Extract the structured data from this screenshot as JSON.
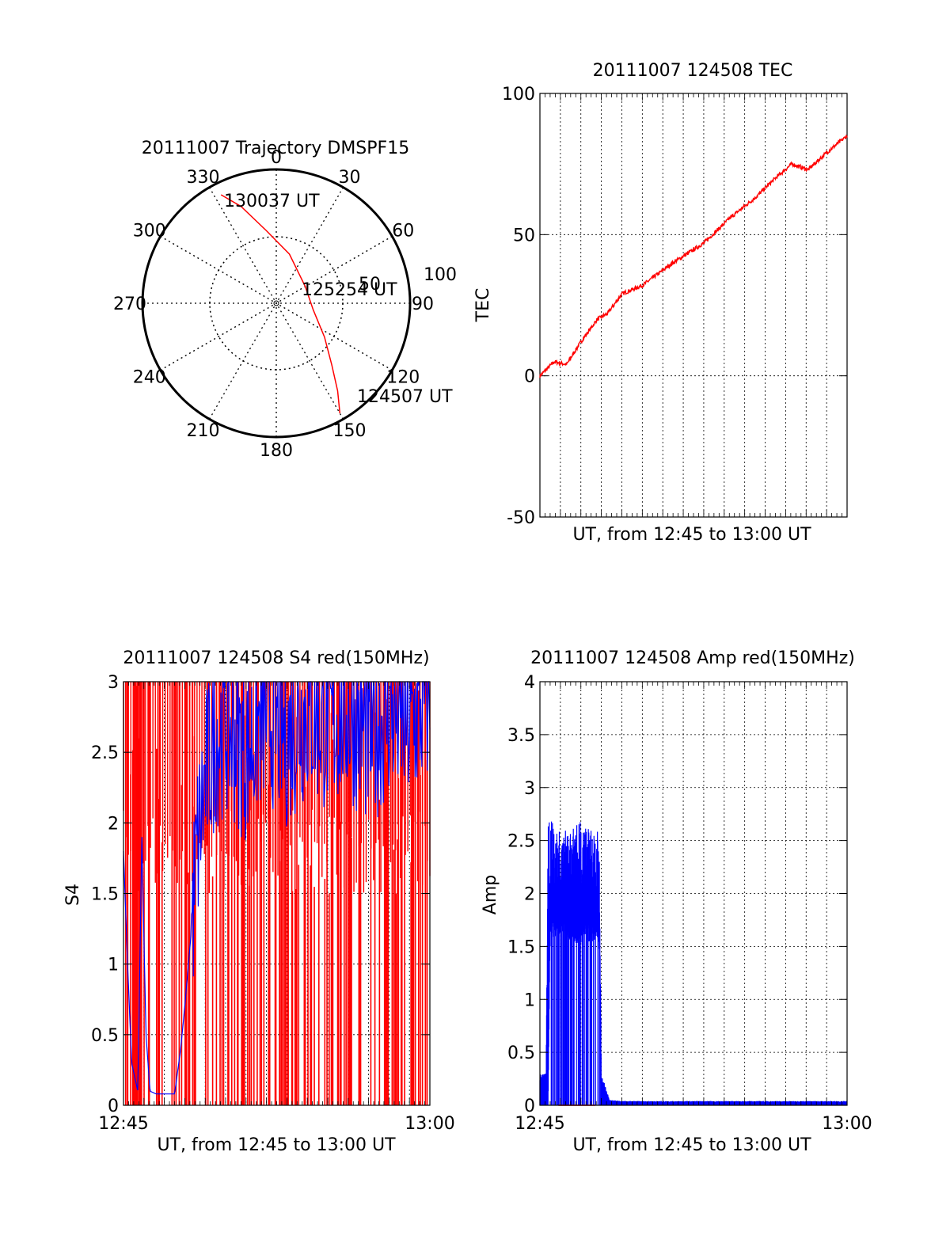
{
  "figure": {
    "charts": {
      "trajectory": {
        "type": "polar",
        "title": "20111007 Trajectory DMSPF15",
        "angle_labels": [
          "0",
          "30",
          "60",
          "90",
          "120",
          "150",
          "180",
          "210",
          "240",
          "270",
          "300",
          "330"
        ],
        "radial_labels": [
          "50",
          "100"
        ],
        "rmax": 100,
        "annotations": {
          "start": "124507 UT",
          "mid": "125254 UT",
          "end": "130037 UT"
        },
        "track_color": "#ff0000",
        "track": [
          {
            "az": 150,
            "r": 95
          },
          {
            "az": 145,
            "r": 80
          },
          {
            "az": 138,
            "r": 62
          },
          {
            "az": 125,
            "r": 44
          },
          {
            "az": 100,
            "r": 28
          },
          {
            "az": 60,
            "r": 25
          },
          {
            "az": 15,
            "r": 38
          },
          {
            "az": 352,
            "r": 55
          },
          {
            "az": 340,
            "r": 77
          },
          {
            "az": 333,
            "r": 91
          }
        ]
      },
      "tec": {
        "type": "line",
        "title": "20111007 124508 TEC",
        "ylabel": "TEC",
        "xlabel": "UT, from 12:45 to 13:00 UT",
        "ylim": [
          -50,
          100
        ],
        "yticks": [
          "100",
          "50",
          "0",
          "-50"
        ],
        "color": "#ff0000",
        "x_minutes": [
          0,
          0.7,
          1.3,
          2.0,
          2.8,
          3.3,
          4.0,
          5.0,
          6.5,
          8.0,
          9.3,
          10.5,
          11.5,
          12.3,
          13.1,
          14.0,
          15.0
        ],
        "values": [
          0,
          5,
          4,
          12,
          20,
          22,
          29,
          32,
          40,
          47,
          56,
          63,
          70,
          75,
          73,
          79,
          85
        ]
      },
      "s4": {
        "type": "line",
        "title": "20111007 124508 S4 red(150MHz)",
        "ylabel": "S4",
        "xlabel": "UT, from 12:45 to 13:00 UT",
        "ylim": [
          0,
          3
        ],
        "yticks": [
          "3",
          "2.5",
          "2",
          "1.5",
          "1",
          "0.5",
          "0"
        ],
        "xticks": [
          "12:45",
          "13:00"
        ],
        "series": [
          {
            "color": "#0000ff",
            "x_minutes": [
              0,
              0.2,
              0.4,
              0.7,
              0.9,
              1.1,
              1.3,
              1.6,
              2.5,
              2.8,
              3.0,
              3.3,
              3.6,
              4.0,
              4.5,
              5.0,
              6.0,
              7.0,
              8.0,
              9.0,
              10.0,
              11.0,
              12.0,
              13.0,
              14.0,
              15.0
            ],
            "values": [
              1.8,
              1.0,
              0.3,
              0.1,
              1.9,
              0.5,
              0.1,
              0.08,
              0.08,
              0.4,
              0.7,
              1.2,
              1.8,
              2.3,
              2.6,
              2.7,
              2.5,
              2.8,
              2.6,
              2.8,
              2.7,
              2.8,
              2.6,
              2.8,
              2.7,
              2.9
            ]
          },
          {
            "color": "#ff0000",
            "pattern": "spikes 0-3 across whole interval"
          }
        ]
      },
      "amp": {
        "type": "line",
        "title": "20111007 124508 Amp red(150MHz)",
        "ylabel": "Amp",
        "xlabel": "UT, from 12:45 to 13:00 UT",
        "ylim": [
          0,
          4
        ],
        "yticks": [
          "4",
          "3.5",
          "3",
          "2.5",
          "2",
          "1.5",
          "1",
          "0.5",
          "0"
        ],
        "xticks": [
          "12:45",
          "13:00"
        ],
        "series": [
          {
            "color": "#0000ff",
            "x_minutes": [
              0,
              0.3,
              0.4,
              0.5,
              1.0,
              1.5,
              2.0,
              2.5,
              2.9,
              3.0,
              3.4,
              4.0,
              7.0,
              15.0
            ],
            "values_high": [
              0.3,
              0.3,
              2.7,
              2.7,
              2.6,
              2.6,
              2.7,
              2.6,
              2.6,
              0.3,
              0.05,
              0.04,
              0.04,
              0.04
            ],
            "values_low": [
              0,
              0,
              0,
              1.7,
              1.8,
              1.7,
              1.7,
              1.7,
              1.7,
              0,
              0,
              0,
              0,
              0
            ]
          },
          {
            "color": "#ff0000",
            "x_minutes": [
              0.9,
              2.7
            ],
            "values": [
              0,
              0
            ]
          }
        ]
      }
    }
  }
}
